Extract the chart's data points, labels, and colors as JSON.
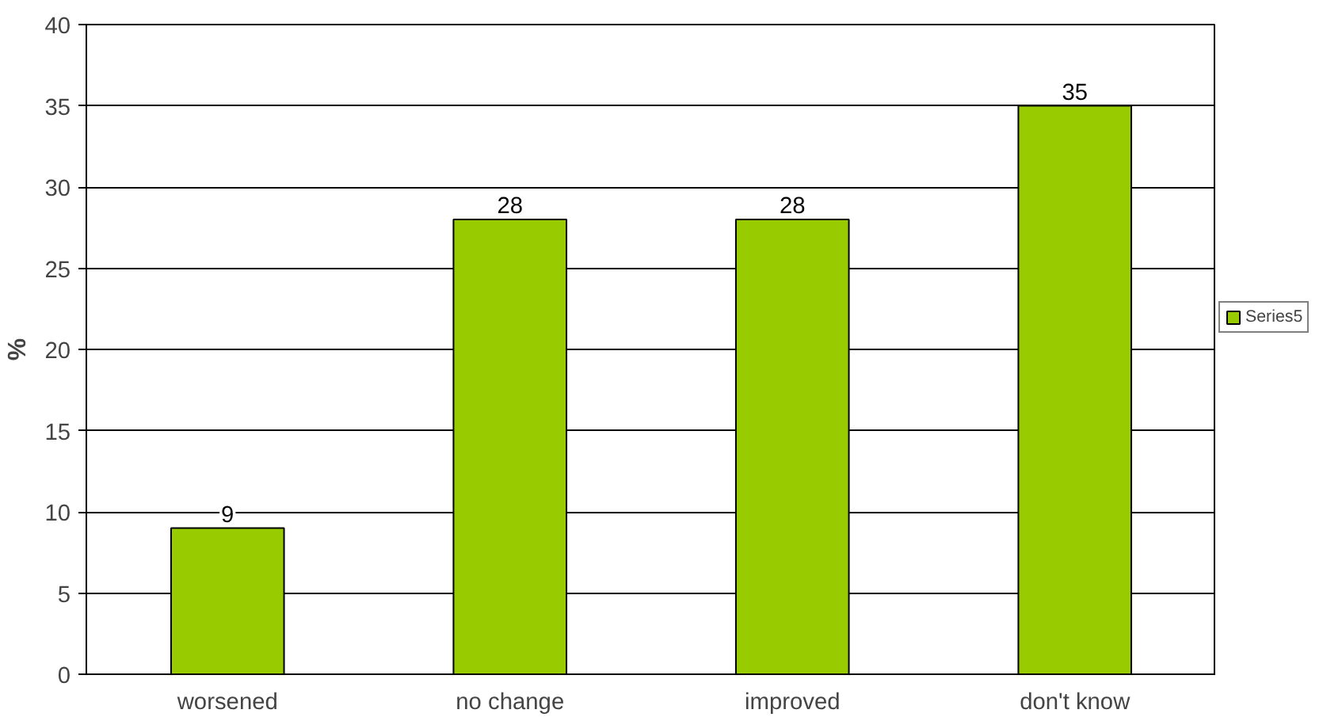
{
  "chart_data": {
    "type": "bar",
    "ylabel": "%",
    "categories": [
      "worsened",
      "no change",
      "improved",
      "don't know"
    ],
    "series": [
      {
        "name": "Series5",
        "color": "#99cc00",
        "values": [
          9,
          28,
          28,
          35
        ]
      }
    ],
    "ylim": [
      0,
      40
    ],
    "yticks": [
      0,
      5,
      10,
      15,
      20,
      25,
      30,
      35,
      40
    ],
    "grid": "y",
    "legend": "right",
    "data_labels": true
  }
}
